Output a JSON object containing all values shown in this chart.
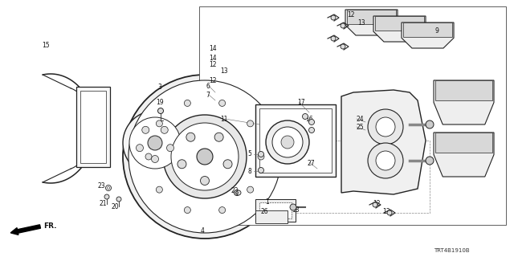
{
  "background_color": "#ffffff",
  "diagram_code": "TRT4B1910B",
  "fr_text": "FR.",
  "line_color": "#222222",
  "text_color": "#111111",
  "fig_width": 6.4,
  "fig_height": 3.2,
  "dpi": 100
}
